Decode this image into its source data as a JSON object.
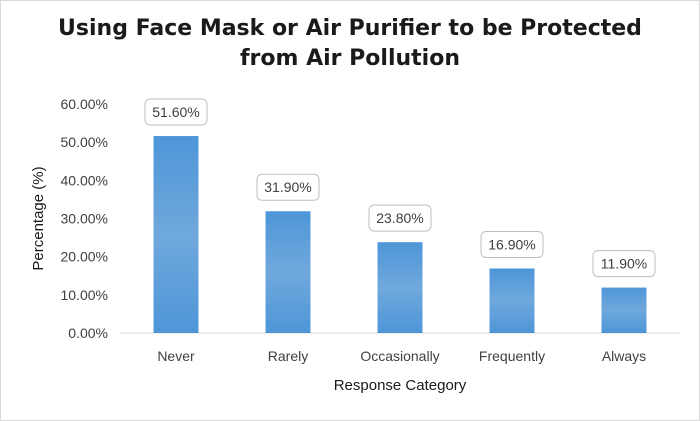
{
  "chart_data": {
    "type": "bar",
    "title": "Using Face Mask or Air Purifier to be Protected from Air Pollution",
    "title_lines": [
      "Using Face Mask or Air Purifier to be Protected",
      "from Air Pollution"
    ],
    "xlabel": "Response Category",
    "ylabel": "Percentage (%)",
    "categories": [
      "Never",
      "Rarely",
      "Occasionally",
      "Frequently",
      "Always"
    ],
    "values": [
      51.6,
      31.9,
      23.8,
      16.9,
      11.9
    ],
    "data_labels": [
      "51.60%",
      "31.90%",
      "23.80%",
      "16.90%",
      "11.90%"
    ],
    "ylim": [
      0,
      60
    ],
    "yticks": [
      0,
      10,
      20,
      30,
      40,
      50,
      60
    ],
    "ytick_labels": [
      "0.00%",
      "10.00%",
      "20.00%",
      "30.00%",
      "40.00%",
      "50.00%",
      "60.00%"
    ],
    "grid": false,
    "legend": "none",
    "bar_color": "#5b9bd5",
    "bar_color_dark": "#4a8fd0"
  }
}
